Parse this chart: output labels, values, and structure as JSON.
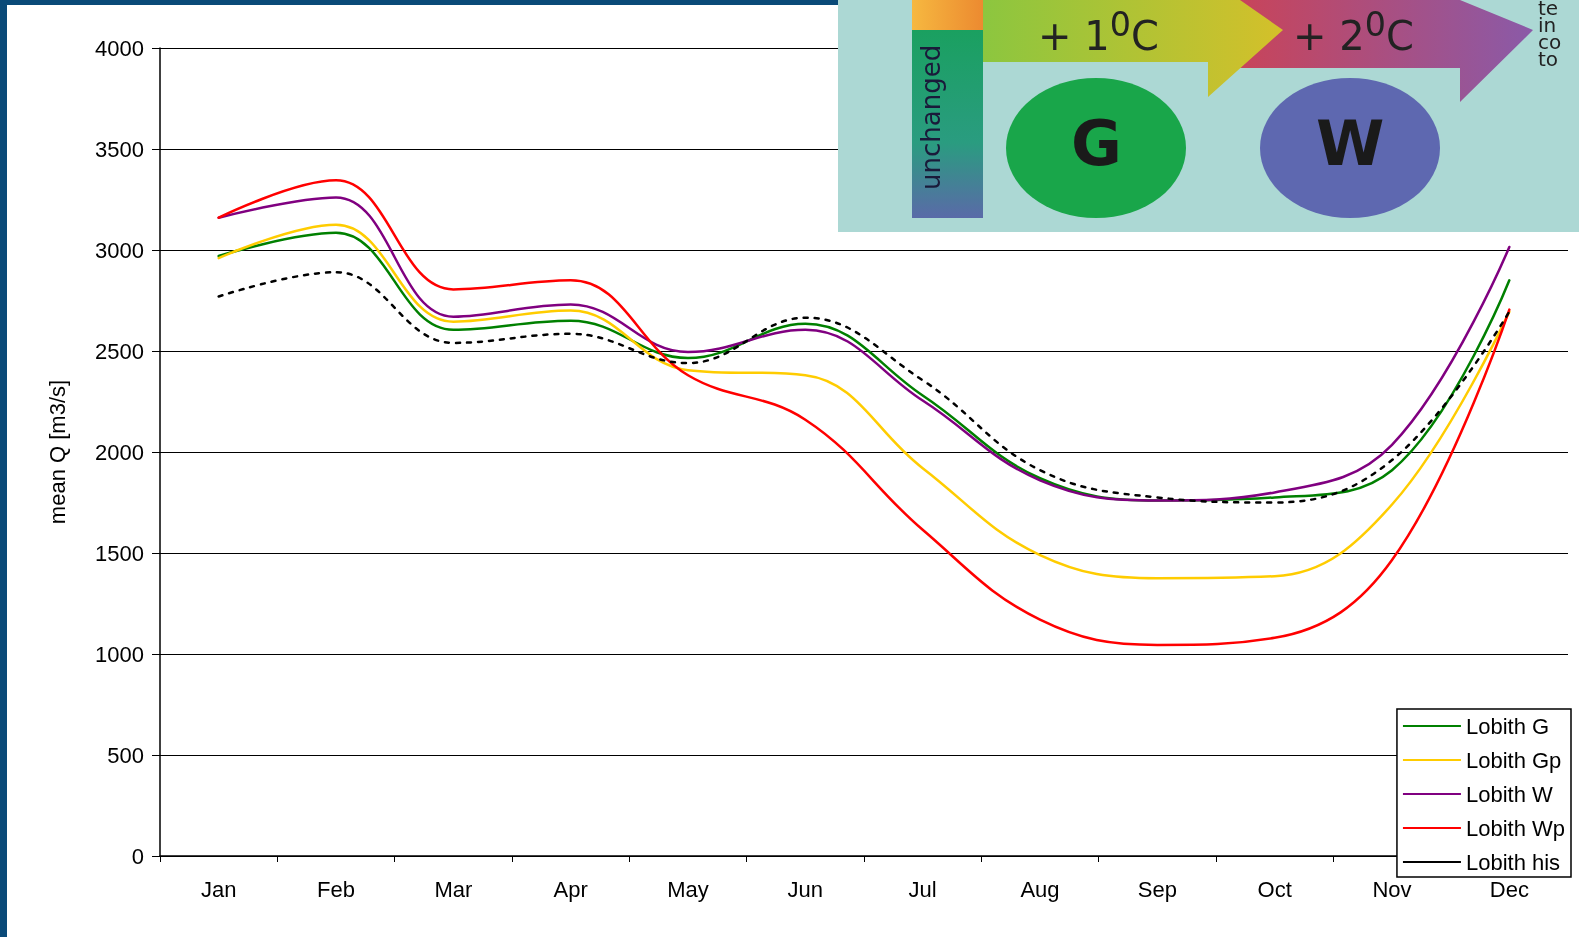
{
  "chart_data": {
    "type": "line",
    "ylabel": "mean Q [m3/s]",
    "categories": [
      "Jan",
      "Feb",
      "Mar",
      "Apr",
      "May",
      "Jun",
      "Jul",
      "Aug",
      "Sep",
      "Oct",
      "Nov",
      "Dec"
    ],
    "series": [
      {
        "name": "Lobith G",
        "color": "#008000",
        "values": [
          2970,
          3085,
          2605,
          2650,
          2465,
          2635,
          2280,
          1870,
          1760,
          1775,
          1910,
          2850
        ]
      },
      {
        "name": "Lobith Gp",
        "color": "#ffcc00",
        "values": [
          2960,
          3125,
          2645,
          2700,
          2405,
          2380,
          1920,
          1490,
          1375,
          1385,
          1740,
          2695
        ]
      },
      {
        "name": "Lobith W",
        "color": "#800080",
        "values": [
          3160,
          3260,
          2670,
          2730,
          2495,
          2605,
          2255,
          1860,
          1760,
          1800,
          2035,
          3015
        ]
      },
      {
        "name": "Lobith Wp",
        "color": "#ff0000",
        "values": [
          3160,
          3345,
          2805,
          2850,
          2380,
          2160,
          1615,
          1170,
          1045,
          1080,
          1465,
          2705
        ]
      },
      {
        "name": "Lobith his",
        "color": "#000000",
        "line_style": "dotted",
        "values": [
          2770,
          2890,
          2540,
          2585,
          2440,
          2665,
          2355,
          1910,
          1775,
          1750,
          1960,
          2695
        ]
      }
    ],
    "ylim": [
      0,
      4000
    ],
    "yticks": [
      0,
      500,
      1000,
      1500,
      2000,
      2500,
      3000,
      3500,
      4000
    ],
    "grid": "y",
    "legend": "bottom right",
    "marker": "none",
    "line_style": "solid",
    "annotations": [
      "+ 1$^{0}$C",
      "+ 2$^{0}$C",
      "unchanged",
      "G",
      "W",
      "te\nin\nco\nto"
    ]
  }
}
